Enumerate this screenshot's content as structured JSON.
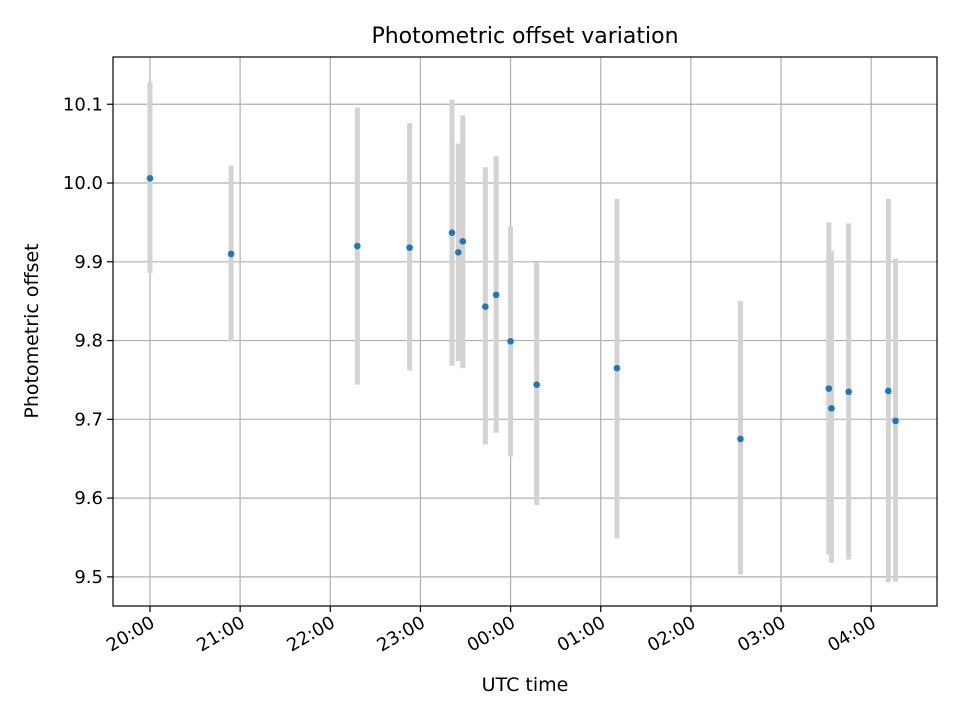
{
  "chart_data": {
    "type": "scatter",
    "title": "Photometric offset variation",
    "xlabel": "UTC time",
    "ylabel": "Photometric offset",
    "x_ticks": [
      "20:00",
      "21:00",
      "22:00",
      "23:00",
      "00:00",
      "01:00",
      "02:00",
      "03:00",
      "04:00"
    ],
    "x_tick_hours": [
      0,
      1,
      2,
      3,
      4,
      5,
      6,
      7,
      8
    ],
    "y_ticks": [
      9.5,
      9.6,
      9.7,
      9.8,
      9.9,
      10.0,
      10.1
    ],
    "y_tick_labels": [
      "9.5",
      "9.6",
      "9.7",
      "9.8",
      "9.9",
      "10.0",
      "10.1"
    ],
    "xlim_hours_after_2000": [
      -0.41,
      8.73
    ],
    "ylim": [
      9.463,
      10.16
    ],
    "grid": true,
    "colors": {
      "points": "#1f77b4",
      "errorbars": "#d3d3d3",
      "grid": "#b0b0b0"
    },
    "points": [
      {
        "time": "20:00",
        "hours": 0.0,
        "y": 10.006,
        "ylo": 9.886,
        "yhi": 10.128
      },
      {
        "time": "20:54",
        "hours": 0.9,
        "y": 9.91,
        "ylo": 9.799,
        "yhi": 10.022
      },
      {
        "time": "22:18",
        "hours": 2.3,
        "y": 9.92,
        "ylo": 9.744,
        "yhi": 10.096
      },
      {
        "time": "22:53",
        "hours": 2.88,
        "y": 9.918,
        "ylo": 9.762,
        "yhi": 10.076
      },
      {
        "time": "23:21",
        "hours": 3.35,
        "y": 9.937,
        "ylo": 9.768,
        "yhi": 10.106
      },
      {
        "time": "23:25",
        "hours": 3.42,
        "y": 9.912,
        "ylo": 9.774,
        "yhi": 10.05
      },
      {
        "time": "23:28",
        "hours": 3.47,
        "y": 9.926,
        "ylo": 9.765,
        "yhi": 10.086
      },
      {
        "time": "23:43",
        "hours": 3.72,
        "y": 9.843,
        "ylo": 9.668,
        "yhi": 10.02
      },
      {
        "time": "23:50",
        "hours": 3.84,
        "y": 9.858,
        "ylo": 9.683,
        "yhi": 10.034
      },
      {
        "time": "00:00",
        "hours": 4.0,
        "y": 9.799,
        "ylo": 9.653,
        "yhi": 9.945
      },
      {
        "time": "00:17",
        "hours": 4.29,
        "y": 9.744,
        "ylo": 9.591,
        "yhi": 9.899
      },
      {
        "time": "01:11",
        "hours": 5.18,
        "y": 9.765,
        "ylo": 9.549,
        "yhi": 9.98
      },
      {
        "time": "02:33",
        "hours": 6.55,
        "y": 9.675,
        "ylo": 9.503,
        "yhi": 9.85
      },
      {
        "time": "03:32",
        "hours": 7.53,
        "y": 9.739,
        "ylo": 9.528,
        "yhi": 9.95
      },
      {
        "time": "03:33",
        "hours": 7.56,
        "y": 9.714,
        "ylo": 9.518,
        "yhi": 9.914
      },
      {
        "time": "03:45",
        "hours": 7.75,
        "y": 9.735,
        "ylo": 9.522,
        "yhi": 9.949
      },
      {
        "time": "04:11",
        "hours": 8.19,
        "y": 9.736,
        "ylo": 9.493,
        "yhi": 9.98
      },
      {
        "time": "04:16",
        "hours": 8.27,
        "y": 9.698,
        "ylo": 9.494,
        "yhi": 9.904
      }
    ]
  }
}
